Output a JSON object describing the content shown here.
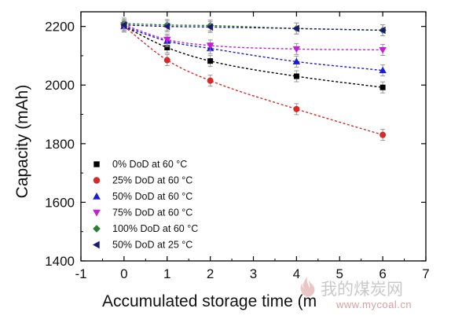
{
  "chart_data": {
    "type": "scatter",
    "xlabel": "Accumulated storage time (m",
    "ylabel": "Capacity (mAh)",
    "xlim": [
      -1,
      7
    ],
    "ylim": [
      1400,
      2250
    ],
    "xticks": [
      "-1",
      "0",
      "1",
      "2",
      "3",
      "4",
      "5",
      "6",
      "7"
    ],
    "yticks": [
      "1400",
      "1600",
      "1800",
      "2000",
      "2200"
    ],
    "legend_position": "bottom-left",
    "fit_lines": "dashed",
    "series": [
      {
        "name": "0% DoD at 60 °C",
        "marker": "square",
        "color": "#000000",
        "x": [
          0,
          1,
          2,
          4,
          6
        ],
        "y": [
          2200,
          2128,
          2082,
          2030,
          1992
        ]
      },
      {
        "name": "25% DoD at 60 °C",
        "marker": "circle",
        "color": "#d42a2a",
        "x": [
          0,
          1,
          2,
          4,
          6
        ],
        "y": [
          2200,
          2085,
          2015,
          1918,
          1830
        ]
      },
      {
        "name": "50% DoD at 60 °C",
        "marker": "triangle-up",
        "color": "#1b1bd6",
        "x": [
          0,
          1,
          2,
          4,
          6
        ],
        "y": [
          2200,
          2150,
          2125,
          2080,
          2050
        ]
      },
      {
        "name": "75% DoD at 60 °C",
        "marker": "triangle-down",
        "color": "#c41fd8",
        "x": [
          0,
          1,
          2,
          4,
          6
        ],
        "y": [
          2205,
          2155,
          2135,
          2123,
          2120
        ]
      },
      {
        "name": "100% DoD at 60 °C",
        "marker": "diamond",
        "color": "#2e7d32",
        "x": [
          0,
          1,
          2,
          4,
          6
        ],
        "y": [
          2210,
          2205,
          2203,
          2193,
          2187
        ]
      },
      {
        "name": "50% DoD at 25 °C",
        "marker": "triangle-left",
        "color": "#1a1a6e",
        "x": [
          0,
          1,
          2,
          4,
          6
        ],
        "y": [
          2205,
          2200,
          2198,
          2193,
          2187
        ]
      }
    ]
  },
  "watermark": {
    "text": "我的煤炭网",
    "url": "www.mycoal.cn"
  }
}
